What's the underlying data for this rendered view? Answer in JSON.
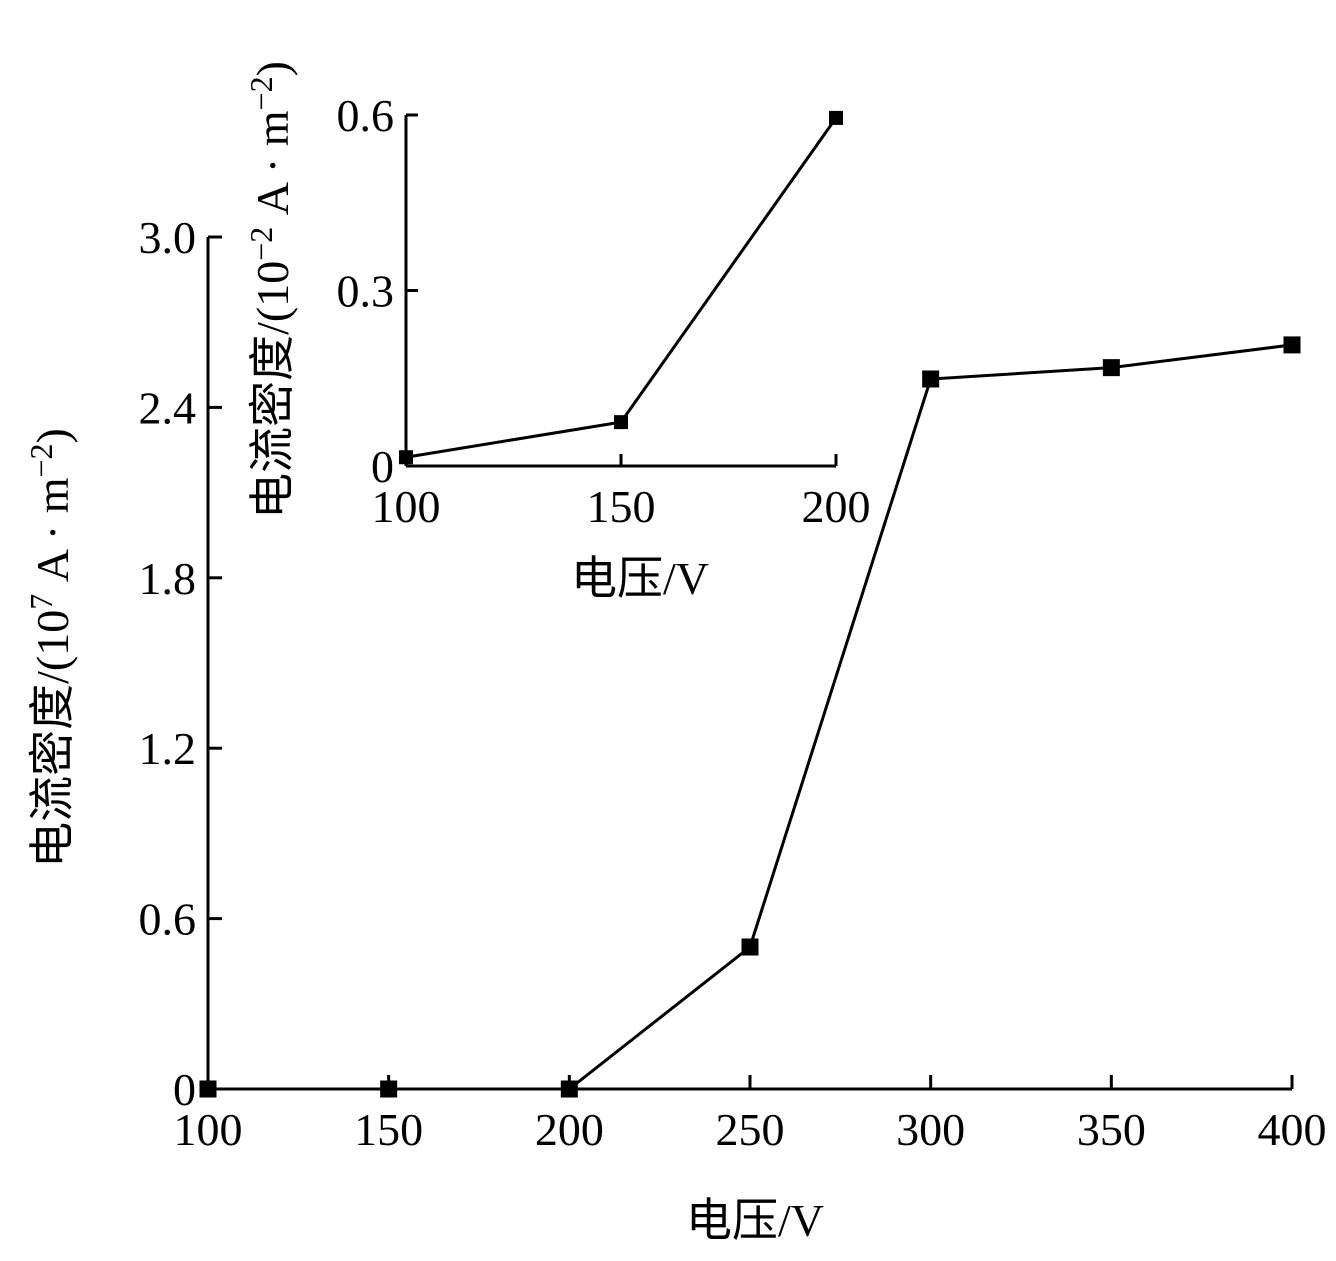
{
  "chart_data": [
    {
      "type": "line",
      "x": [
        100,
        150,
        200,
        250,
        300,
        350,
        400
      ],
      "series": [
        {
          "values": [
            0,
            0,
            0,
            0.5,
            2.5,
            2.54,
            2.62
          ]
        }
      ],
      "xlabel": "电压/V",
      "ylabel_main": "电流密度/(10",
      "ylabel_exp": "7",
      "ylabel_unit": " A · m",
      "ylabel_unit_exp": "−2",
      "ylabel_close": ")",
      "xlim": [
        100,
        400
      ],
      "ylim": [
        0,
        3.0
      ],
      "xticks": [
        "100",
        "150",
        "200",
        "250",
        "300",
        "350",
        "400"
      ],
      "yticks": [
        "0",
        "0.6",
        "1.2",
        "1.8",
        "2.4",
        "3.0"
      ],
      "grid": false,
      "marker": "square",
      "color": "#000000"
    },
    {
      "type": "line",
      "inset": true,
      "x": [
        100,
        150,
        200
      ],
      "series": [
        {
          "values": [
            0.015,
            0.075,
            0.595
          ]
        }
      ],
      "xlabel": "电压/V",
      "ylabel_main": "电流密度/(10",
      "ylabel_exp": "−2",
      "ylabel_unit": " A · m",
      "ylabel_unit_exp": "−2",
      "ylabel_close": ")",
      "xlim": [
        100,
        200
      ],
      "ylim": [
        0,
        0.6
      ],
      "xticks": [
        "100",
        "150",
        "200"
      ],
      "yticks": [
        "0",
        "0.3",
        "0.6"
      ],
      "grid": false,
      "marker": "square",
      "color": "#000000"
    }
  ]
}
